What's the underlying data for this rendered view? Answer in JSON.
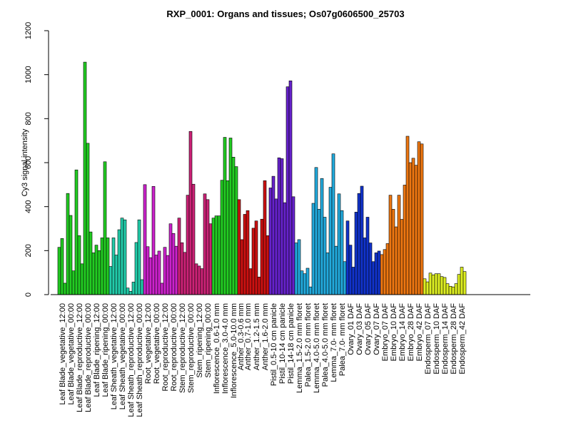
{
  "chart_data": {
    "type": "bar",
    "title": "RXP_0001: Organs and tissues; Os07g0606500_25703",
    "xlabel": "",
    "ylabel": "Cy3 signal intensity",
    "ylim": [
      0,
      1200
    ],
    "yticks": [
      0,
      200,
      400,
      600,
      800,
      1000,
      1200
    ],
    "grid": false,
    "legend": "none",
    "groups": [
      {
        "label": "Leaf Blade_vegetative_12:00",
        "color": "#22cc22",
        "values": [
          215,
          255,
          52
        ]
      },
      {
        "label": "Leaf Blade_vegetative_00:00",
        "color": "#22cc22",
        "values": [
          460,
          360,
          108
        ]
      },
      {
        "label": "Leaf Blade_reproductive_12:00",
        "color": "#22cc22",
        "values": [
          567,
          268,
          140
        ]
      },
      {
        "label": "Leaf Blade_reproductive_00:00",
        "color": "#22cc22",
        "values": [
          1057,
          688,
          285
        ]
      },
      {
        "label": "Leaf Blade_ripening_12:00",
        "color": "#22cc22",
        "values": [
          190,
          225,
          200
        ]
      },
      {
        "label": "Leaf Blade_ripening_00:00",
        "color": "#22cc22",
        "values": [
          258,
          604,
          258
        ]
      },
      {
        "label": "Leaf Sheath_vegetative_12:00",
        "color": "#22ccaa",
        "values": [
          128,
          258,
          180
        ]
      },
      {
        "label": "Leaf Sheath_vegetative_00:00",
        "color": "#22ccaa",
        "values": [
          295,
          348,
          340
        ]
      },
      {
        "label": "Leaf Sheath_reproductive_12:00",
        "color": "#22ccaa",
        "values": [
          30,
          15,
          57
        ]
      },
      {
        "label": "Leaf Sheath_reproductive_00:00",
        "color": "#22ccaa",
        "values": [
          237,
          340,
          68
        ]
      },
      {
        "label": "Root_vegetative_12:00",
        "color": "#cc22cc",
        "values": [
          500,
          218,
          168
        ]
      },
      {
        "label": "Root_vegetative_00:00",
        "color": "#cc22cc",
        "values": [
          492,
          180,
          198
        ]
      },
      {
        "label": "Root_reproductive_12:00",
        "color": "#cc22cc",
        "values": [
          52,
          215,
          178
        ]
      },
      {
        "label": "Root_reproductive_00:00",
        "color": "#cc22cc",
        "values": [
          322,
          278,
          220
        ]
      },
      {
        "label": "Stem_reproductive_12:00",
        "color": "#cc2277",
        "values": [
          348,
          236,
          192
        ]
      },
      {
        "label": "Stem_reproductive_00:00",
        "color": "#cc2277",
        "values": [
          452,
          742,
          502
        ]
      },
      {
        "label": "Stem_ripening_12:00",
        "color": "#cc2277",
        "values": [
          140,
          130,
          118
        ]
      },
      {
        "label": "Stem_ripening_00:00",
        "color": "#cc2277",
        "values": [
          458,
          432,
          322
        ]
      },
      {
        "label": "Inflorescence_0.6-1.0 mm",
        "color": "#22cc22",
        "values": [
          348,
          358,
          358
        ]
      },
      {
        "label": "Inflorescence_3.0-4.0 mm",
        "color": "#22cc22",
        "values": [
          520,
          715,
          518
        ]
      },
      {
        "label": "Inflorescence_5.0-10.0 mm",
        "color": "#22cc22",
        "values": [
          712,
          625,
          582
        ]
      },
      {
        "label": "Anther_0.3-0.6 mm",
        "color": "#cc1111",
        "values": [
          432,
          250
        ]
      },
      {
        "label": "Anther_0.7-1.0 mm",
        "color": "#cc1111",
        "values": [
          365,
          382,
          118
        ]
      },
      {
        "label": "Anther_1.2-1.5 mm",
        "color": "#cc1111",
        "values": [
          302,
          335,
          80
        ]
      },
      {
        "label": "Anther_1.6-2.0 mm",
        "color": "#cc1111",
        "values": [
          343,
          518,
          268
        ]
      },
      {
        "label": "Pistil_0.5-10 cm panicle",
        "color": "#6622cc",
        "values": [
          485,
          538,
          435
        ]
      },
      {
        "label": "Pistil_10-14 cm panicle",
        "color": "#6622cc",
        "values": [
          622,
          618,
          418
        ]
      },
      {
        "label": "Pistil_14-18 cm panicle",
        "color": "#6622cc",
        "values": [
          945,
          972,
          445
        ]
      },
      {
        "label": "Lemma_1.5-2.0 mm floret",
        "color": "#22aadd",
        "values": [
          235,
          250,
          108
        ]
      },
      {
        "label": "Palea_1.5-2.0 mm floret",
        "color": "#22aadd",
        "values": [
          95,
          120,
          35
        ]
      },
      {
        "label": "Lemma_4.0-5.0 mm floret",
        "color": "#22aadd",
        "values": [
          415,
          578,
          388
        ]
      },
      {
        "label": "Palea_4.0-5.0 mm floret",
        "color": "#22aadd",
        "values": [
          528,
          352,
          190
        ]
      },
      {
        "label": "Lemma_7.0- mm floret",
        "color": "#22aadd",
        "values": [
          488,
          640,
          220
        ]
      },
      {
        "label": "Palea_7.0- mm floret",
        "color": "#22aadd",
        "values": [
          458,
          382,
          150
        ]
      },
      {
        "label": "Ovary_01 DAF",
        "color": "#1133cc",
        "values": [
          335,
          225,
          125
        ]
      },
      {
        "label": "Ovary_03 DAF",
        "color": "#1133cc",
        "values": [
          375,
          460,
          493
        ]
      },
      {
        "label": "Ovary_05 DAF",
        "color": "#1133cc",
        "values": [
          258,
          352,
          235
        ]
      },
      {
        "label": "Ovary_07 DAF",
        "color": "#1133cc",
        "values": [
          150,
          190,
          198
        ]
      },
      {
        "label": "Embryo_07 DAF",
        "color": "#ee7711",
        "values": [
          182,
          205,
          232
        ]
      },
      {
        "label": "Embryo_10 DAF",
        "color": "#ee7711",
        "values": [
          452,
          388,
          308
        ]
      },
      {
        "label": "Embryo_14 DAF",
        "color": "#ee7711",
        "values": [
          452,
          342,
          498
        ]
      },
      {
        "label": "Embryo_28 DAF",
        "color": "#ee7711",
        "values": [
          720,
          600,
          620
        ]
      },
      {
        "label": "Embryo_42 DAF",
        "color": "#ee7711",
        "values": [
          588,
          695,
          685
        ]
      },
      {
        "label": "Endosperm_07 DAF",
        "color": "#ddee22",
        "values": [
          72,
          58,
          98
        ]
      },
      {
        "label": "Endosperm_10 DAF",
        "color": "#ddee22",
        "values": [
          90,
          95,
          95
        ]
      },
      {
        "label": "Endosperm_14 DAF",
        "color": "#ddee22",
        "values": [
          82,
          78,
          50
        ]
      },
      {
        "label": "Endosperm_28 DAF",
        "color": "#ddee22",
        "values": [
          38,
          35,
          50
        ]
      },
      {
        "label": "Endosperm_42 DAF",
        "color": "#ddee22",
        "values": [
          92,
          125,
          105
        ]
      }
    ]
  }
}
